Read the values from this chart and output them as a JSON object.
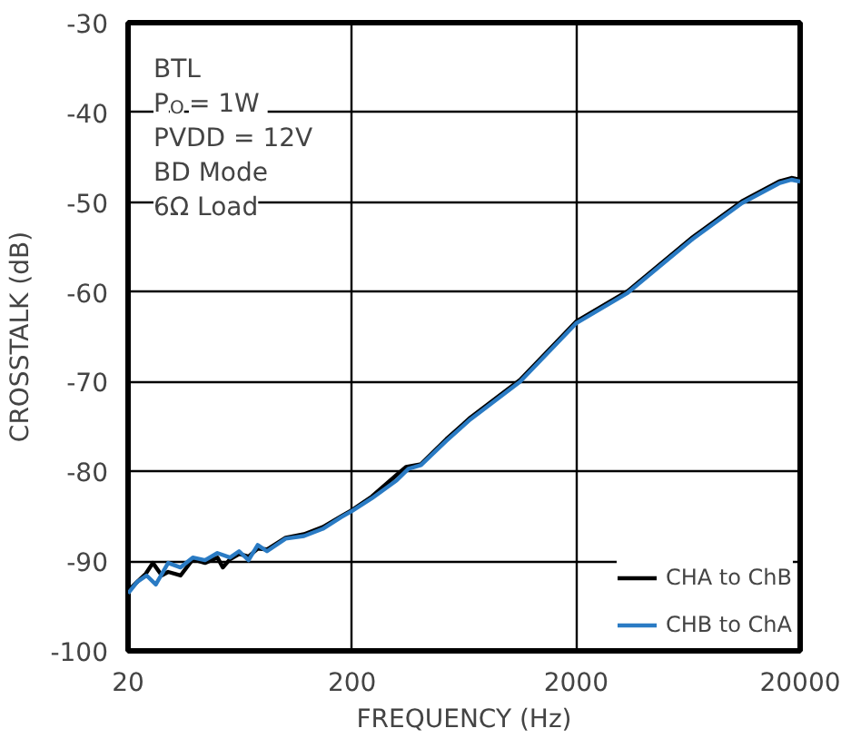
{
  "chart_data": {
    "type": "line",
    "xlabel": "FREQUENCY (Hz)",
    "ylabel": "CROSSTALK (dB)",
    "annotations": [
      "BTL",
      "P$_{O}$ = 1W",
      "PVDD = 12V",
      "BD Mode",
      "6Ω Load"
    ],
    "xlim": [
      20,
      20000
    ],
    "xticks": [
      20,
      200,
      2000,
      20000
    ],
    "ylim": [
      -100,
      -30
    ],
    "yticks": [
      -100,
      -90,
      -80,
      -70,
      -60,
      -50,
      -40,
      -30
    ],
    "log": "x",
    "grid": true,
    "legend": "bottom right",
    "marker": "none",
    "line_style": "solid",
    "series": [
      {
        "name": "CHA to ChB",
        "color": "#000000",
        "x": [
          20,
          22,
          24,
          25.8,
          28.3,
          30.2,
          34.3,
          38.9,
          44.1,
          50.1,
          53,
          57,
          62.6,
          69,
          75.8,
          83.4,
          101,
          122,
          148,
          179,
          200,
          245,
          316,
          348,
          406,
          527,
          675,
          1124,
          2000,
          3400,
          6630,
          11000,
          16100,
          18300,
          20000
        ],
        "values": [
          -93.3,
          -92.3,
          -91.4,
          -90.2,
          -91.6,
          -91.2,
          -91.6,
          -89.8,
          -90.2,
          -89.6,
          -90.7,
          -89.8,
          -89.2,
          -89.5,
          -88.6,
          -88.7,
          -87.4,
          -87.0,
          -86.2,
          -85.0,
          -84.3,
          -82.8,
          -80.4,
          -79.5,
          -79.2,
          -76.4,
          -74.0,
          -69.8,
          -63.3,
          -59.9,
          -53.9,
          -49.9,
          -47.7,
          -47.3,
          -47.5
        ]
      },
      {
        "name": "CHB to ChA",
        "color": "#2a7bc4",
        "x": [
          20,
          22,
          24.2,
          26.6,
          30.2,
          34.3,
          38.9,
          44.1,
          50.1,
          57,
          62.6,
          69,
          75.8,
          83.4,
          101,
          122,
          148,
          179,
          200,
          245,
          316,
          357,
          406,
          527,
          675,
          1124,
          2000,
          3400,
          6630,
          11000,
          16100,
          18300,
          20000
        ],
        "values": [
          -93.6,
          -92.3,
          -91.6,
          -92.6,
          -90.2,
          -90.7,
          -89.6,
          -89.9,
          -89.1,
          -89.6,
          -88.9,
          -89.9,
          -88.2,
          -88.9,
          -87.5,
          -87.2,
          -86.4,
          -85.1,
          -84.4,
          -83.0,
          -81.0,
          -79.7,
          -79.3,
          -76.6,
          -74.2,
          -70.0,
          -63.5,
          -60.1,
          -54.1,
          -50.1,
          -47.9,
          -47.5,
          -47.7
        ]
      }
    ]
  }
}
